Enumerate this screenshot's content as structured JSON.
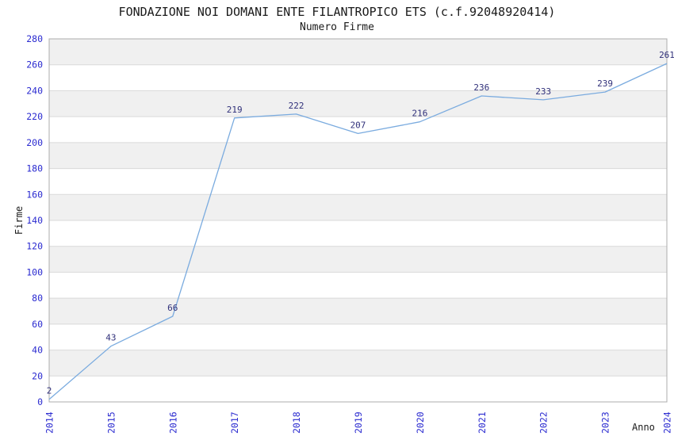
{
  "chart_data": {
    "type": "line",
    "title": "FONDAZIONE NOI DOMANI ENTE FILANTROPICO ETS (c.f.92048920414)",
    "subtitle": "Numero Firme",
    "xlabel": "Anno",
    "ylabel": "Firme",
    "categories": [
      "2014",
      "2015",
      "2016",
      "2017",
      "2018",
      "2019",
      "2020",
      "2021",
      "2022",
      "2023",
      "2024"
    ],
    "series": [
      {
        "name": "Numero Firme",
        "values": [
          2,
          43,
          66,
          219,
          222,
          207,
          216,
          236,
          233,
          239,
          261
        ]
      }
    ],
    "ylim": [
      0,
      280
    ],
    "ytick_step": 20,
    "grid": true,
    "bands_alternating": true,
    "legend_position": "none",
    "point_labels_visible": true,
    "colors": {
      "line": "#7aabdf",
      "point_label": "#30307a",
      "tick_label": "#2b2bd0",
      "band_fill": "#f0f0f0",
      "gridline": "#d9d9d9",
      "plot_border": "#acacac",
      "title_text": "#1a1a1a",
      "background": "#ffffff"
    }
  }
}
